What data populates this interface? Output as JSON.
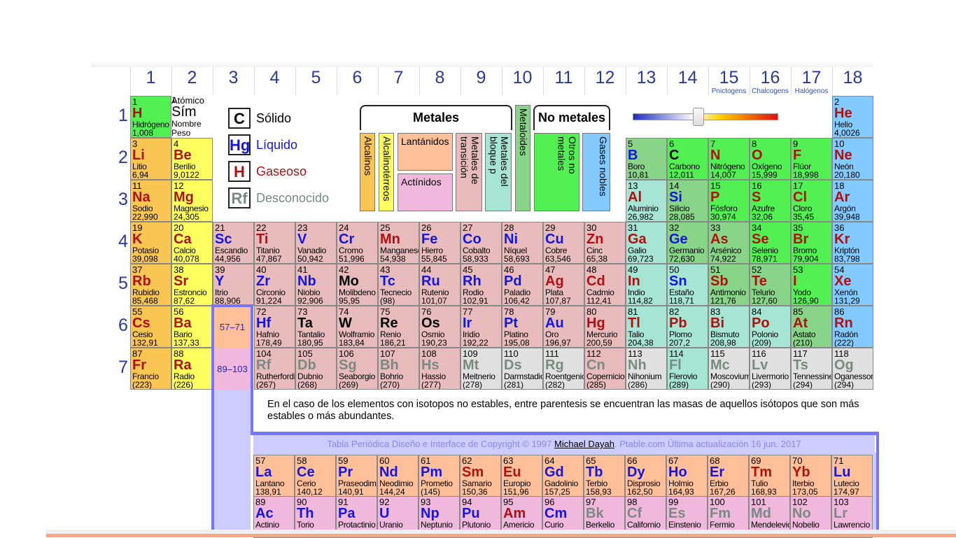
{
  "groups": [
    "1",
    "2",
    "3",
    "4",
    "5",
    "6",
    "7",
    "8",
    "9",
    "10",
    "11",
    "12",
    "13",
    "14",
    "15",
    "16",
    "17",
    "18"
  ],
  "group_subtitles": {
    "15": "Pnictogens",
    "16": "Chalcogens",
    "17": "Halógenos"
  },
  "periods": [
    "1",
    "2",
    "3",
    "4",
    "5",
    "6",
    "7"
  ],
  "legend_key": {
    "number": "1",
    "atomic": "Atómico",
    "symbol": "Sím",
    "name": "Nombre",
    "weight": "Peso"
  },
  "states": [
    {
      "symbol": "C",
      "label": "Sólido"
    },
    {
      "symbol": "Hg",
      "label": "Líquido"
    },
    {
      "symbol": "H",
      "label": "Gaseoso"
    },
    {
      "symbol": "Rf",
      "label": "Desconocido"
    }
  ],
  "categories": {
    "metals_header": "Metales",
    "nonmetals_header": "No metales",
    "alkali": "Alcalinos",
    "alkaline_earth": "Alcalinotérreos",
    "lanthanides": "Lantánidos",
    "actinides": "Actínidos",
    "transition": "Metales de transición",
    "post_transition": "Metales del bloque p",
    "metalloids": "Metaloides",
    "other_nonmetals": "Otros no metales",
    "noble_gases": "Gases nobles"
  },
  "placeholders": {
    "lanthanides": "57–71",
    "actinides": "89–103"
  },
  "elements": [
    {
      "n": "1",
      "s": "H",
      "name": "Hidrógeno",
      "w": "1,008",
      "st": "G",
      "cat": "nonm",
      "col": 1,
      "row": 1
    },
    {
      "n": "2",
      "s": "He",
      "name": "Helio",
      "w": "4,0026",
      "st": "G",
      "cat": "noble",
      "col": 18,
      "row": 1
    },
    {
      "n": "3",
      "s": "Li",
      "name": "Litio",
      "w": "6,94",
      "st": "G",
      "cat": "alk",
      "col": 1,
      "row": 2
    },
    {
      "n": "4",
      "s": "Be",
      "name": "Berilio",
      "w": "9,0122",
      "st": "G",
      "cat": "alkt",
      "col": 2,
      "row": 2
    },
    {
      "n": "5",
      "s": "B",
      "name": "Boro",
      "w": "10,81",
      "st": "L",
      "cat": "metd",
      "col": 13,
      "row": 2
    },
    {
      "n": "6",
      "s": "C",
      "name": "Carbono",
      "w": "12,011",
      "st": "S",
      "cat": "nonm",
      "col": 14,
      "row": 2
    },
    {
      "n": "7",
      "s": "N",
      "name": "Nitrógeno",
      "w": "14,007",
      "st": "G",
      "cat": "nonm",
      "col": 15,
      "row": 2
    },
    {
      "n": "8",
      "s": "O",
      "name": "Oxígeno",
      "w": "15,999",
      "st": "G",
      "cat": "nonm",
      "col": 16,
      "row": 2
    },
    {
      "n": "9",
      "s": "F",
      "name": "Flúor",
      "w": "18,998",
      "st": "G",
      "cat": "nonm",
      "col": 17,
      "row": 2
    },
    {
      "n": "10",
      "s": "Ne",
      "name": "Neón",
      "w": "20,180",
      "st": "G",
      "cat": "noble",
      "col": 18,
      "row": 2
    },
    {
      "n": "11",
      "s": "Na",
      "name": "Sodio",
      "w": "22,990",
      "st": "G",
      "cat": "alk",
      "col": 1,
      "row": 3
    },
    {
      "n": "12",
      "s": "Mg",
      "name": "Magnesio",
      "w": "24,305",
      "st": "G",
      "cat": "alkt",
      "col": 2,
      "row": 3
    },
    {
      "n": "13",
      "s": "Al",
      "name": "Aluminio",
      "w": "26,982",
      "st": "G",
      "cat": "post",
      "col": 13,
      "row": 3
    },
    {
      "n": "14",
      "s": "Si",
      "name": "Silicio",
      "w": "28,085",
      "st": "L",
      "cat": "metd",
      "col": 14,
      "row": 3
    },
    {
      "n": "15",
      "s": "P",
      "name": "Fósforo",
      "w": "30,974",
      "st": "G",
      "cat": "nonm",
      "col": 15,
      "row": 3
    },
    {
      "n": "16",
      "s": "S",
      "name": "Azufre",
      "w": "32,06",
      "st": "G",
      "cat": "nonm",
      "col": 16,
      "row": 3
    },
    {
      "n": "17",
      "s": "Cl",
      "name": "Cloro",
      "w": "35,45",
      "st": "G",
      "cat": "nonm",
      "col": 17,
      "row": 3
    },
    {
      "n": "18",
      "s": "Ar",
      "name": "Argón",
      "w": "39,948",
      "st": "G",
      "cat": "noble",
      "col": 18,
      "row": 3
    },
    {
      "n": "19",
      "s": "K",
      "name": "Potasio",
      "w": "39,098",
      "st": "G",
      "cat": "alk",
      "col": 1,
      "row": 4
    },
    {
      "n": "20",
      "s": "Ca",
      "name": "Calcio",
      "w": "40,078",
      "st": "G",
      "cat": "alkt",
      "col": 2,
      "row": 4
    },
    {
      "n": "21",
      "s": "Sc",
      "name": "Escandio",
      "w": "44,956",
      "st": "L",
      "cat": "tran",
      "col": 3,
      "row": 4
    },
    {
      "n": "22",
      "s": "Ti",
      "name": "Titanio",
      "w": "47,867",
      "st": "G",
      "cat": "tran",
      "col": 4,
      "row": 4
    },
    {
      "n": "23",
      "s": "V",
      "name": "Vanadio",
      "w": "50,942",
      "st": "L",
      "cat": "tran",
      "col": 5,
      "row": 4
    },
    {
      "n": "24",
      "s": "Cr",
      "name": "Cromo",
      "w": "51,996",
      "st": "L",
      "cat": "tran",
      "col": 6,
      "row": 4
    },
    {
      "n": "25",
      "s": "Mn",
      "name": "Manganeso",
      "w": "54,938",
      "st": "G",
      "cat": "tran",
      "col": 7,
      "row": 4
    },
    {
      "n": "26",
      "s": "Fe",
      "name": "Hierro",
      "w": "55,845",
      "st": "L",
      "cat": "tran",
      "col": 8,
      "row": 4
    },
    {
      "n": "27",
      "s": "Co",
      "name": "Cobalto",
      "w": "58,933",
      "st": "L",
      "cat": "tran",
      "col": 9,
      "row": 4
    },
    {
      "n": "28",
      "s": "Ni",
      "name": "Níquel",
      "w": "58,693",
      "st": "L",
      "cat": "tran",
      "col": 10,
      "row": 4
    },
    {
      "n": "29",
      "s": "Cu",
      "name": "Cobre",
      "w": "63,546",
      "st": "L",
      "cat": "tran",
      "col": 11,
      "row": 4
    },
    {
      "n": "30",
      "s": "Zn",
      "name": "Cinc",
      "w": "65,38",
      "st": "G",
      "cat": "tran",
      "col": 12,
      "row": 4
    },
    {
      "n": "31",
      "s": "Ga",
      "name": "Galio",
      "w": "69,723",
      "st": "G",
      "cat": "post",
      "col": 13,
      "row": 4
    },
    {
      "n": "32",
      "s": "Ge",
      "name": "Germanio",
      "w": "72,630",
      "st": "L",
      "cat": "metd",
      "col": 14,
      "row": 4
    },
    {
      "n": "33",
      "s": "As",
      "name": "Arsénico",
      "w": "74,922",
      "st": "G",
      "cat": "metd",
      "col": 15,
      "row": 4
    },
    {
      "n": "34",
      "s": "Se",
      "name": "Selenio",
      "w": "78,971",
      "st": "G",
      "cat": "nonm",
      "col": 16,
      "row": 4
    },
    {
      "n": "35",
      "s": "Br",
      "name": "Bromo",
      "w": "79,904",
      "st": "G",
      "cat": "nonm",
      "col": 17,
      "row": 4
    },
    {
      "n": "36",
      "s": "Kr",
      "name": "Kriptón",
      "w": "83,798",
      "st": "G",
      "cat": "noble",
      "col": 18,
      "row": 4
    },
    {
      "n": "37",
      "s": "Rb",
      "name": "Rubidio",
      "w": "85,468",
      "st": "G",
      "cat": "alk",
      "col": 1,
      "row": 5
    },
    {
      "n": "38",
      "s": "Sr",
      "name": "Estroncio",
      "w": "87,62",
      "st": "G",
      "cat": "alkt",
      "col": 2,
      "row": 5
    },
    {
      "n": "39",
      "s": "Y",
      "name": "Itrio",
      "w": "88,906",
      "st": "L",
      "cat": "tran",
      "col": 3,
      "row": 5
    },
    {
      "n": "40",
      "s": "Zr",
      "name": "Circonio",
      "w": "91,224",
      "st": "L",
      "cat": "tran",
      "col": 4,
      "row": 5
    },
    {
      "n": "41",
      "s": "Nb",
      "name": "Niobio",
      "w": "92,906",
      "st": "L",
      "cat": "tran",
      "col": 5,
      "row": 5
    },
    {
      "n": "42",
      "s": "Mo",
      "name": "Molibdeno",
      "w": "95,95",
      "st": "S",
      "cat": "tran",
      "col": 6,
      "row": 5
    },
    {
      "n": "43",
      "s": "Tc",
      "name": "Tecnecio",
      "w": "(98)",
      "st": "L",
      "cat": "tran",
      "col": 7,
      "row": 5
    },
    {
      "n": "44",
      "s": "Ru",
      "name": "Rutenio",
      "w": "101,07",
      "st": "L",
      "cat": "tran",
      "col": 8,
      "row": 5
    },
    {
      "n": "45",
      "s": "Rh",
      "name": "Rodio",
      "w": "102,91",
      "st": "L",
      "cat": "tran",
      "col": 9,
      "row": 5
    },
    {
      "n": "46",
      "s": "Pd",
      "name": "Paladio",
      "w": "106,42",
      "st": "L",
      "cat": "tran",
      "col": 10,
      "row": 5
    },
    {
      "n": "47",
      "s": "Ag",
      "name": "Plata",
      "w": "107,87",
      "st": "G",
      "cat": "tran",
      "col": 11,
      "row": 5
    },
    {
      "n": "48",
      "s": "Cd",
      "name": "Cadmio",
      "w": "112,41",
      "st": "G",
      "cat": "tran",
      "col": 12,
      "row": 5
    },
    {
      "n": "49",
      "s": "In",
      "name": "Indio",
      "w": "114,82",
      "st": "G",
      "cat": "post",
      "col": 13,
      "row": 5
    },
    {
      "n": "50",
      "s": "Sn",
      "name": "Estaño",
      "w": "118,71",
      "st": "L",
      "cat": "post",
      "col": 14,
      "row": 5
    },
    {
      "n": "51",
      "s": "Sb",
      "name": "Antimonio",
      "w": "121,76",
      "st": "G",
      "cat": "metd",
      "col": 15,
      "row": 5
    },
    {
      "n": "52",
      "s": "Te",
      "name": "Telurio",
      "w": "127,60",
      "st": "G",
      "cat": "metd",
      "col": 16,
      "row": 5
    },
    {
      "n": "53",
      "s": "I",
      "name": "Yodo",
      "w": "126,90",
      "st": "G",
      "cat": "nonm",
      "col": 17,
      "row": 5
    },
    {
      "n": "54",
      "s": "Xe",
      "name": "Xenón",
      "w": "131,29",
      "st": "G",
      "cat": "noble",
      "col": 18,
      "row": 5
    },
    {
      "n": "55",
      "s": "Cs",
      "name": "Cesio",
      "w": "132,91",
      "st": "G",
      "cat": "alk",
      "col": 1,
      "row": 6
    },
    {
      "n": "56",
      "s": "Ba",
      "name": "Bario",
      "w": "137,33",
      "st": "G",
      "cat": "alkt",
      "col": 2,
      "row": 6
    },
    {
      "n": "72",
      "s": "Hf",
      "name": "Hafnio",
      "w": "178,49",
      "st": "L",
      "cat": "tran",
      "col": 4,
      "row": 6
    },
    {
      "n": "73",
      "s": "Ta",
      "name": "Tantalio",
      "w": "180,95",
      "st": "S",
      "cat": "tran",
      "col": 5,
      "row": 6
    },
    {
      "n": "74",
      "s": "W",
      "name": "Wolframio",
      "w": "183,84",
      "st": "S",
      "cat": "tran",
      "col": 6,
      "row": 6
    },
    {
      "n": "75",
      "s": "Re",
      "name": "Renio",
      "w": "186,21",
      "st": "S",
      "cat": "tran",
      "col": 7,
      "row": 6
    },
    {
      "n": "76",
      "s": "Os",
      "name": "Osmio",
      "w": "190,23",
      "st": "S",
      "cat": "tran",
      "col": 8,
      "row": 6
    },
    {
      "n": "77",
      "s": "Ir",
      "name": "Iridio",
      "w": "192,22",
      "st": "L",
      "cat": "tran",
      "col": 9,
      "row": 6
    },
    {
      "n": "78",
      "s": "Pt",
      "name": "Platino",
      "w": "195,08",
      "st": "L",
      "cat": "tran",
      "col": 10,
      "row": 6
    },
    {
      "n": "79",
      "s": "Au",
      "name": "Oro",
      "w": "196,97",
      "st": "L",
      "cat": "tran",
      "col": 11,
      "row": 6
    },
    {
      "n": "80",
      "s": "Hg",
      "name": "Mercurio",
      "w": "200,59",
      "st": "G",
      "cat": "tran",
      "col": 12,
      "row": 6
    },
    {
      "n": "81",
      "s": "Tl",
      "name": "Talio",
      "w": "204,38",
      "st": "G",
      "cat": "post",
      "col": 13,
      "row": 6
    },
    {
      "n": "82",
      "s": "Pb",
      "name": "Plomo",
      "w": "207,2",
      "st": "G",
      "cat": "post",
      "col": 14,
      "row": 6
    },
    {
      "n": "83",
      "s": "Bi",
      "name": "Bismuto",
      "w": "208,98",
      "st": "G",
      "cat": "post",
      "col": 15,
      "row": 6
    },
    {
      "n": "84",
      "s": "Po",
      "name": "Polonio",
      "w": "(209)",
      "st": "G",
      "cat": "post",
      "col": 16,
      "row": 6
    },
    {
      "n": "85",
      "s": "At",
      "name": "Astato",
      "w": "(210)",
      "st": "G",
      "cat": "metd",
      "col": 17,
      "row": 6
    },
    {
      "n": "86",
      "s": "Rn",
      "name": "Radón",
      "w": "(222)",
      "st": "G",
      "cat": "noble",
      "col": 18,
      "row": 6
    },
    {
      "n": "87",
      "s": "Fr",
      "name": "Francio",
      "w": "(223)",
      "st": "G",
      "cat": "alk",
      "col": 1,
      "row": 7
    },
    {
      "n": "88",
      "s": "Ra",
      "name": "Radio",
      "w": "(226)",
      "st": "G",
      "cat": "alkt",
      "col": 2,
      "row": 7
    },
    {
      "n": "104",
      "s": "Rf",
      "name": "Rutherfordio",
      "w": "(267)",
      "st": "U",
      "cat": "tran",
      "col": 4,
      "row": 7
    },
    {
      "n": "105",
      "s": "Db",
      "name": "Dubnio",
      "w": "(268)",
      "st": "U",
      "cat": "tran",
      "col": 5,
      "row": 7
    },
    {
      "n": "106",
      "s": "Sg",
      "name": "Seaborgio",
      "w": "(269)",
      "st": "U",
      "cat": "tran",
      "col": 6,
      "row": 7
    },
    {
      "n": "107",
      "s": "Bh",
      "name": "Bohrio",
      "w": "(270)",
      "st": "U",
      "cat": "tran",
      "col": 7,
      "row": 7
    },
    {
      "n": "108",
      "s": "Hs",
      "name": "Hassio",
      "w": "(277)",
      "st": "U",
      "cat": "tran",
      "col": 8,
      "row": 7
    },
    {
      "n": "109",
      "s": "Mt",
      "name": "Meitnerio",
      "w": "(278)",
      "st": "U",
      "cat": "unk",
      "col": 9,
      "row": 7
    },
    {
      "n": "110",
      "s": "Ds",
      "name": "Darmstadio",
      "w": "(281)",
      "st": "U",
      "cat": "unk",
      "col": 10,
      "row": 7
    },
    {
      "n": "111",
      "s": "Rg",
      "name": "Roentgenio",
      "w": "(282)",
      "st": "U",
      "cat": "unk",
      "col": 11,
      "row": 7
    },
    {
      "n": "112",
      "s": "Cn",
      "name": "Copernicio",
      "w": "(285)",
      "st": "U",
      "cat": "tran",
      "col": 12,
      "row": 7
    },
    {
      "n": "113",
      "s": "Nh",
      "name": "Nihonium",
      "w": "(286)",
      "st": "U",
      "cat": "unk",
      "col": 13,
      "row": 7
    },
    {
      "n": "114",
      "s": "Fl",
      "name": "Flerovio",
      "w": "(289)",
      "st": "U",
      "cat": "post",
      "col": 14,
      "row": 7
    },
    {
      "n": "115",
      "s": "Mc",
      "name": "Moscovium",
      "w": "(290)",
      "st": "U",
      "cat": "unk",
      "col": 15,
      "row": 7
    },
    {
      "n": "116",
      "s": "Lv",
      "name": "Livermorio",
      "w": "(293)",
      "st": "U",
      "cat": "unk",
      "col": 16,
      "row": 7
    },
    {
      "n": "117",
      "s": "Ts",
      "name": "Tennessine",
      "w": "(294)",
      "st": "U",
      "cat": "unk",
      "col": 17,
      "row": 7
    },
    {
      "n": "118",
      "s": "Og",
      "name": "Oganesson",
      "w": "(294)",
      "st": "U",
      "cat": "unk",
      "col": 18,
      "row": 7
    }
  ],
  "lanthanides": [
    {
      "n": "57",
      "s": "La",
      "name": "Lantano",
      "w": "138,91",
      "st": "L"
    },
    {
      "n": "58",
      "s": "Ce",
      "name": "Cerio",
      "w": "140,12",
      "st": "L"
    },
    {
      "n": "59",
      "s": "Pr",
      "name": "Praseodimio",
      "w": "140,91",
      "st": "L"
    },
    {
      "n": "60",
      "s": "Nd",
      "name": "Neodimio",
      "w": "144,24",
      "st": "L"
    },
    {
      "n": "61",
      "s": "Pm",
      "name": "Prometio",
      "w": "(145)",
      "st": "L"
    },
    {
      "n": "62",
      "s": "Sm",
      "name": "Samario",
      "w": "150,36",
      "st": "G"
    },
    {
      "n": "63",
      "s": "Eu",
      "name": "Europio",
      "w": "151,96",
      "st": "G"
    },
    {
      "n": "64",
      "s": "Gd",
      "name": "Gadolinio",
      "w": "157,25",
      "st": "L"
    },
    {
      "n": "65",
      "s": "Tb",
      "name": "Terbio",
      "w": "158,93",
      "st": "L"
    },
    {
      "n": "66",
      "s": "Dy",
      "name": "Disprosio",
      "w": "162,50",
      "st": "L"
    },
    {
      "n": "67",
      "s": "Ho",
      "name": "Holmio",
      "w": "164,93",
      "st": "L"
    },
    {
      "n": "68",
      "s": "Er",
      "name": "Erbio",
      "w": "167,26",
      "st": "L"
    },
    {
      "n": "69",
      "s": "Tm",
      "name": "Tulio",
      "w": "168,93",
      "st": "G"
    },
    {
      "n": "70",
      "s": "Yb",
      "name": "Iterbio",
      "w": "173,05",
      "st": "G"
    },
    {
      "n": "71",
      "s": "Lu",
      "name": "Lutecio",
      "w": "174,97",
      "st": "L"
    }
  ],
  "actinides": [
    {
      "n": "89",
      "s": "Ac",
      "name": "Actinio",
      "w": "",
      "st": "L"
    },
    {
      "n": "90",
      "s": "Th",
      "name": "Torio",
      "w": "",
      "st": "L"
    },
    {
      "n": "91",
      "s": "Pa",
      "name": "Protactinio",
      "w": "",
      "st": "L"
    },
    {
      "n": "92",
      "s": "U",
      "name": "Uranio",
      "w": "",
      "st": "L"
    },
    {
      "n": "93",
      "s": "Np",
      "name": "Neptunio",
      "w": "",
      "st": "L"
    },
    {
      "n": "94",
      "s": "Pu",
      "name": "Plutonio",
      "w": "",
      "st": "L"
    },
    {
      "n": "95",
      "s": "Am",
      "name": "Americio",
      "w": "",
      "st": "G"
    },
    {
      "n": "96",
      "s": "Cm",
      "name": "Curio",
      "w": "",
      "st": "L"
    },
    {
      "n": "97",
      "s": "Bk",
      "name": "Berkelio",
      "w": "",
      "st": "U"
    },
    {
      "n": "98",
      "s": "Cf",
      "name": "Californio",
      "w": "",
      "st": "U"
    },
    {
      "n": "99",
      "s": "Es",
      "name": "Einstenio",
      "w": "",
      "st": "U"
    },
    {
      "n": "100",
      "s": "Fm",
      "name": "Fermio",
      "w": "",
      "st": "U"
    },
    {
      "n": "101",
      "s": "Md",
      "name": "Mendelevio",
      "w": "",
      "st": "U"
    },
    {
      "n": "102",
      "s": "No",
      "name": "Nobelio",
      "w": "",
      "st": "U"
    },
    {
      "n": "103",
      "s": "Lr",
      "name": "Lawrencio",
      "w": "",
      "st": "U"
    }
  ],
  "note": "En el caso de los elementos con isotopos no estables, entre parentesis se encuentran las masas de aquellos isótopos que son más estables o más abundantes.",
  "copyright": {
    "prefix": "Tabla Periódica Diseño e Interface de Copyright © 1997 ",
    "author": "Michael Dayah",
    "suffix": ". Ptable.com Última actualización 16 jun. 2017"
  },
  "temperature_slider": {
    "value_fraction": 0.45
  }
}
